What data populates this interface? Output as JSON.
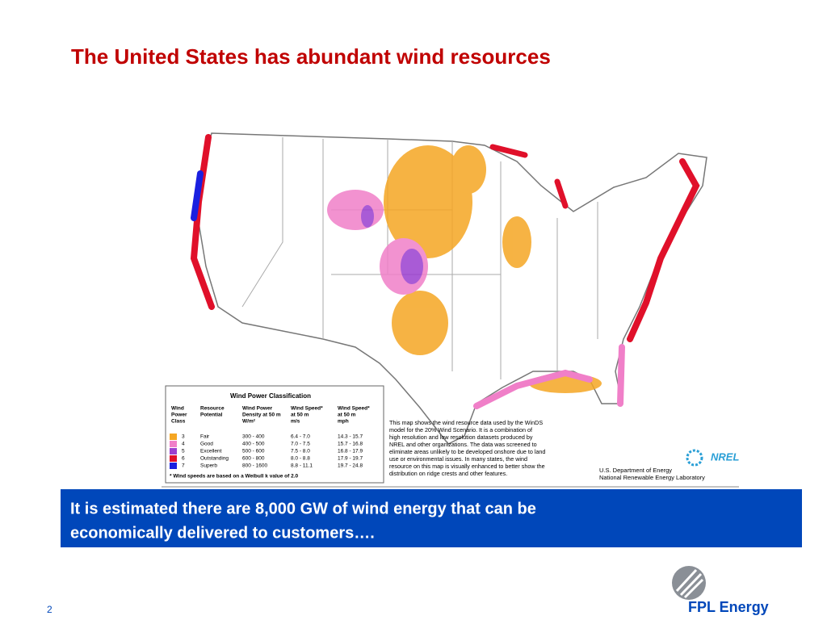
{
  "slide": {
    "title": "The United States has abundant wind resources",
    "callout": [
      "It is estimated there are 8,000 GW of wind energy that can be",
      "economically delivered to customers…."
    ],
    "page_number": "2",
    "logo": "FPL Energy"
  },
  "map": {
    "legend": {
      "title": "Wind Power Classification",
      "headers": [
        [
          "Wind",
          "Power",
          "Class"
        ],
        [
          "Resource",
          "Potential"
        ],
        [
          "Wind Power",
          "Density at 50 m",
          "W/m²"
        ],
        [
          "Wind Speed*",
          "at 50 m",
          "m/s"
        ],
        [
          "Wind Speed*",
          "at 50 m",
          "mph"
        ]
      ],
      "rows": [
        {
          "color": "#f5a623",
          "cells": [
            "3",
            "Fair",
            "300 - 400",
            "6.4 - 7.0",
            "14.3 - 15.7"
          ]
        },
        {
          "color": "#f07fc8",
          "cells": [
            "4",
            "Good",
            "400 - 500",
            "7.0 - 7.5",
            "15.7 - 16.8"
          ]
        },
        {
          "color": "#9b3fd0",
          "cells": [
            "5",
            "Excellent",
            "500 - 600",
            "7.5 - 8.0",
            "16.8 - 17.9"
          ]
        },
        {
          "color": "#e0102a",
          "cells": [
            "6",
            "Outstanding",
            "600 - 800",
            "8.0 - 8.8",
            "17.9 - 19.7"
          ]
        },
        {
          "color": "#1a20e0",
          "cells": [
            "7",
            "Superb",
            "800 - 1600",
            "8.8 - 11.1",
            "19.7 - 24.8"
          ]
        }
      ],
      "footnote": "* Wind speeds are based on a Weibull k value of 2.0"
    },
    "description": [
      "This map shows the wind resource data used by the WinDS",
      "model for the 20% Wind Scenario.  It is a combination of",
      "high resolution and low resolution datasets produced by",
      "NREL and other organizations.  The data was screened to",
      "eliminate areas unlikely to be developed onshore due to land",
      "use or environmental  issues.  In many states, the wind",
      "resource on this map is visually enhanced to better show the",
      "distribution on ridge crests and other features."
    ],
    "nrel_logo": "NREL",
    "credit": [
      "U.S. Department of Energy",
      "National Renewable Energy Laboratory"
    ]
  }
}
